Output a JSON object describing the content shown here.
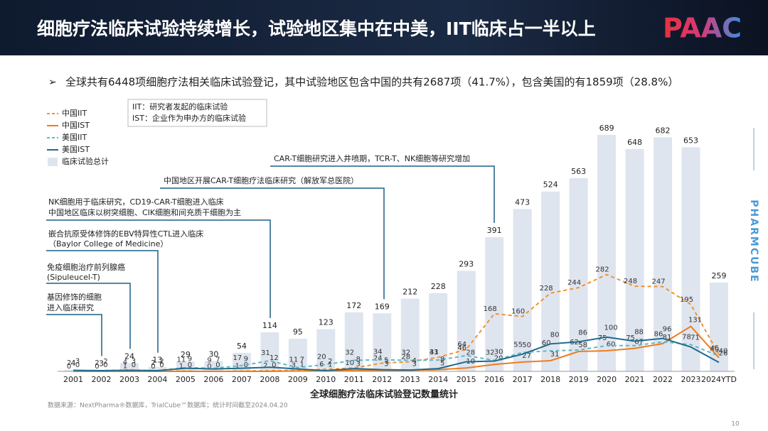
{
  "slide": {
    "title": "细胞疗法临床试验持续增长，试验地区集中在中美，IIT临床占一半以上",
    "logo": "PAAC",
    "bullet": "全球共有6448项细胞疗法相关临床试验登记，其中试验地区包含中国的共有2687项（41.7%），包含美国的有1859项（28.8%）",
    "definitions": [
      "IIT：研究者发起的临床试验",
      "IST：企业作为申办方的临床试验"
    ],
    "source": "数据来源：NextPharma®数据库，TrialCube™数据库；统计时间截至2024.04.20",
    "page": "10",
    "brand": "PHARMCUBE"
  },
  "chart_data": {
    "type": "bar-line",
    "title": "全球细胞疗法临床试验登记数量统计",
    "categories": [
      "2001",
      "2002",
      "2003",
      "2004",
      "2005",
      "2006",
      "2007",
      "2008",
      "2009",
      "2010",
      "2011",
      "2012",
      "2013",
      "2014",
      "2015",
      "2016",
      "2017",
      "2018",
      "2019",
      "2020",
      "2021",
      "2022",
      "2023",
      "2024YTD"
    ],
    "bars": {
      "name": "临床试验总计",
      "color": "#dfe5ef",
      "values": [
        4,
        3,
        24,
        13,
        29,
        30,
        54,
        114,
        95,
        123,
        172,
        169,
        212,
        228,
        293,
        391,
        473,
        524,
        563,
        689,
        648,
        682,
        653,
        259
      ]
    },
    "series": [
      {
        "name": "中国IIT",
        "color": "#f0932f",
        "dash": true,
        "values": [
          0,
          0,
          1,
          0,
          1,
          0,
          1,
          2,
          3,
          6,
          10,
          24,
          28,
          41,
          64,
          168,
          160,
          228,
          244,
          282,
          248,
          247,
          195,
          49
        ]
      },
      {
        "name": "中国IST",
        "color": "#ee7d1c",
        "dash": false,
        "values": [
          0,
          0,
          0,
          0,
          0,
          0,
          0,
          0,
          1,
          1,
          3,
          3,
          3,
          5,
          10,
          20,
          27,
          31,
          58,
          60,
          67,
          81,
          131,
          40
        ]
      },
      {
        "name": "美国IIT",
        "color": "#5db9c9",
        "dash": true,
        "values": [
          2,
          2,
          4,
          2,
          11,
          9,
          17,
          31,
          11,
          20,
          32,
          34,
          32,
          33,
          46,
          32,
          55,
          60,
          62,
          75,
          75,
          86,
          78,
          45
        ]
      },
      {
        "name": "美国IST",
        "color": "#1f6a8d",
        "dash": false,
        "values": [
          3,
          2,
          3,
          2,
          9,
          7,
          9,
          12,
          7,
          2,
          8,
          5,
          4,
          8,
          28,
          30,
          50,
          80,
          86,
          100,
          88,
          96,
          71,
          26
        ]
      }
    ],
    "ylim": [
      0,
      720
    ],
    "annotations": [
      {
        "lines": [
          "CAR-T细胞研究进入井喷期，TCR-T、NK细胞等研究增加"
        ]
      },
      {
        "lines": [
          "中国地区开展CAR-T细胞疗法临床研究（解放军总医院）"
        ]
      },
      {
        "lines": [
          "NK细胞用于临床研究，CD19-CAR-T细胞进入临床",
          "中国地区临床以树突细胞、CIK细胞和间充质干细胞为主"
        ]
      },
      {
        "lines": [
          "嵌合抗原受体修饰的EBV特异性CTL进入临床",
          "（Baylor College of Medicine）"
        ]
      },
      {
        "lines": [
          "免疫细胞治疗前列腺癌",
          "(Sipuleucel-T)"
        ]
      },
      {
        "lines": [
          "基因修饰的细胞",
          "进入临床研究"
        ]
      }
    ]
  }
}
